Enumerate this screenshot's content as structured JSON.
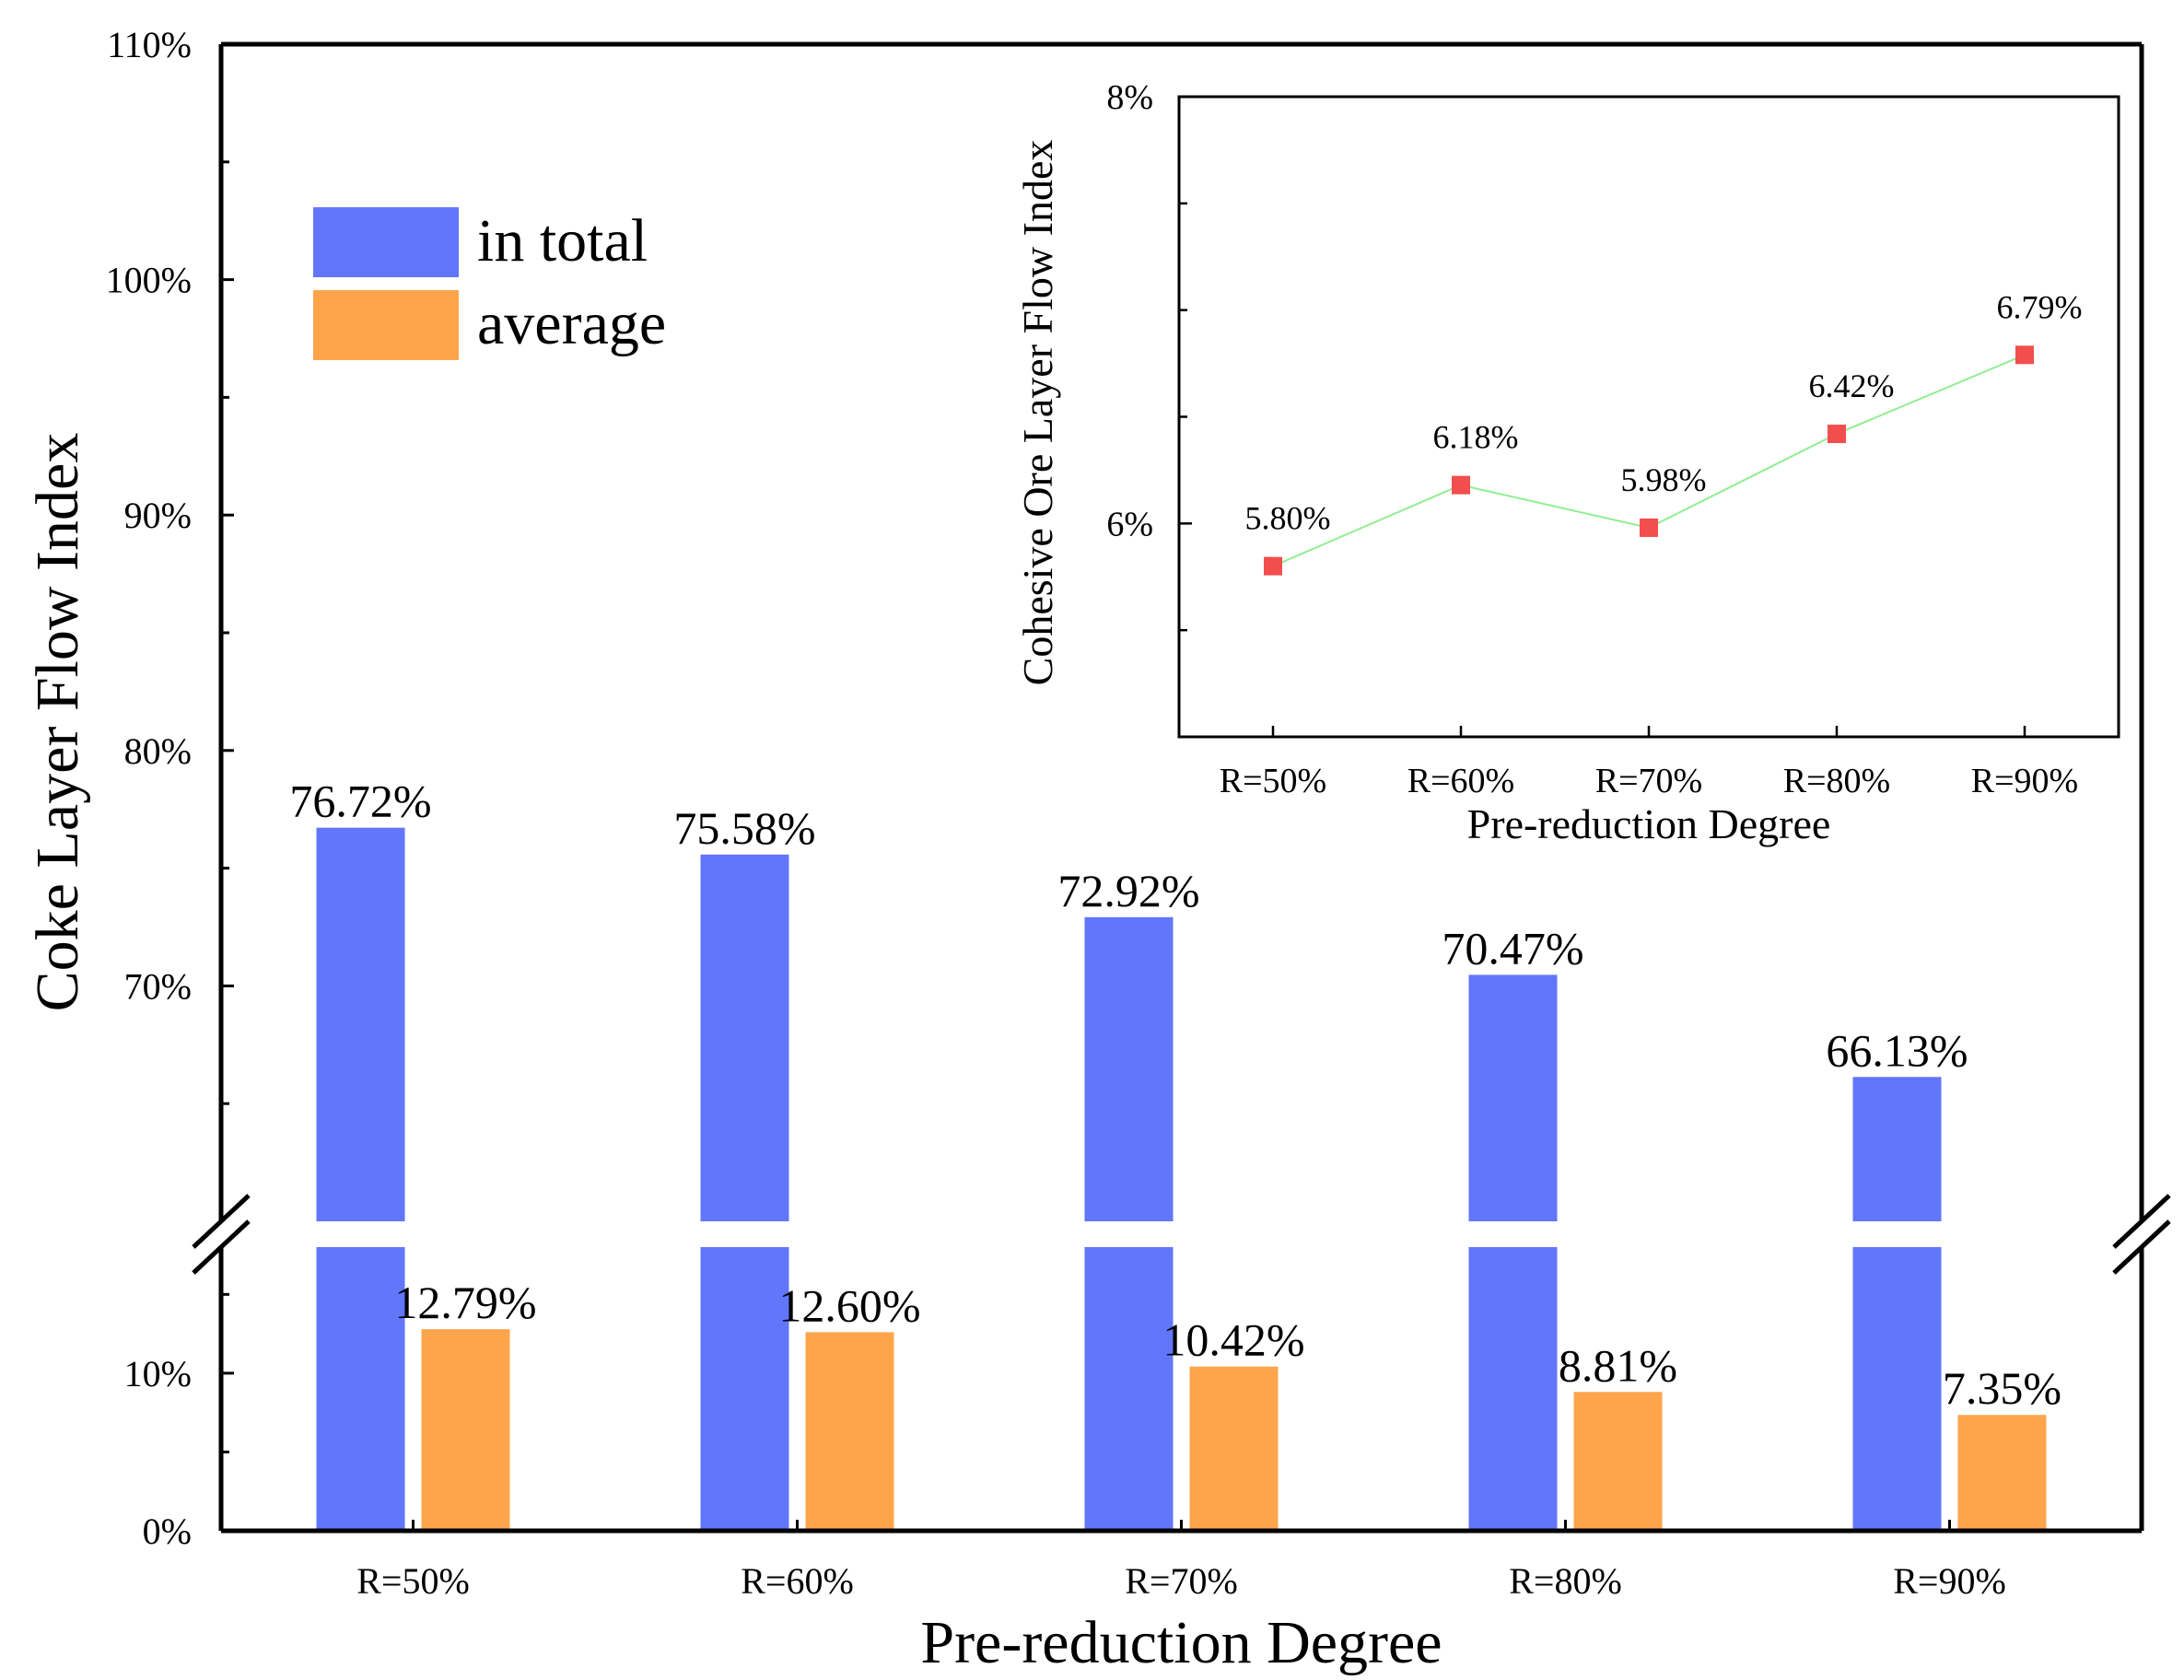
{
  "chart_data": [
    {
      "type": "bar",
      "xlabel": "Pre-reduction Degree",
      "ylabel": "Coke Layer Flow Index",
      "categories": [
        "R=50%",
        "R=60%",
        "R=70%",
        "R=80%",
        "R=90%"
      ],
      "series": [
        {
          "name": "in total",
          "color": "#6176fb",
          "values": [
            76.72,
            75.58,
            72.92,
            70.47,
            66.13
          ],
          "labels": [
            "76.72%",
            "75.58%",
            "72.92%",
            "70.47%",
            "66.13%"
          ]
        },
        {
          "name": "average",
          "color": "#fea54b",
          "values": [
            12.79,
            12.6,
            10.42,
            8.81,
            7.35
          ],
          "labels": [
            "12.79%",
            "12.60%",
            "10.42%",
            "8.81%",
            "7.35%"
          ]
        }
      ],
      "axis_break": {
        "lower": [
          0,
          18
        ],
        "upper": [
          60,
          110
        ]
      },
      "yticks_lower": [
        {
          "value": 0,
          "label": "0%"
        },
        {
          "value": 10,
          "label": "10%"
        }
      ],
      "yticks_upper": [
        {
          "value": 70,
          "label": "70%"
        },
        {
          "value": 80,
          "label": "80%"
        },
        {
          "value": 90,
          "label": "90%"
        },
        {
          "value": 100,
          "label": "100%"
        },
        {
          "value": 110,
          "label": "110%"
        }
      ],
      "legend": {
        "position": "top-left"
      },
      "grid": false
    },
    {
      "type": "line",
      "xlabel": "Pre-reduction Degree",
      "ylabel": "Cohesive Ore Layer Flow Index",
      "categories": [
        "R=50%",
        "R=60%",
        "R=70%",
        "R=80%",
        "R=90%"
      ],
      "series": [
        {
          "color": "#f24e4e",
          "line_color": "#90ee90",
          "values": [
            5.8,
            6.18,
            5.98,
            6.42,
            6.79
          ],
          "labels": [
            "5.80%",
            "6.18%",
            "5.98%",
            "6.42%",
            "6.79%"
          ]
        }
      ],
      "ylim": [
        5.0,
        8.0
      ],
      "yticks": [
        {
          "value": 6,
          "label": "6%"
        },
        {
          "value": 8,
          "label": "8%"
        }
      ],
      "position": "inset top-right",
      "grid": false
    }
  ]
}
